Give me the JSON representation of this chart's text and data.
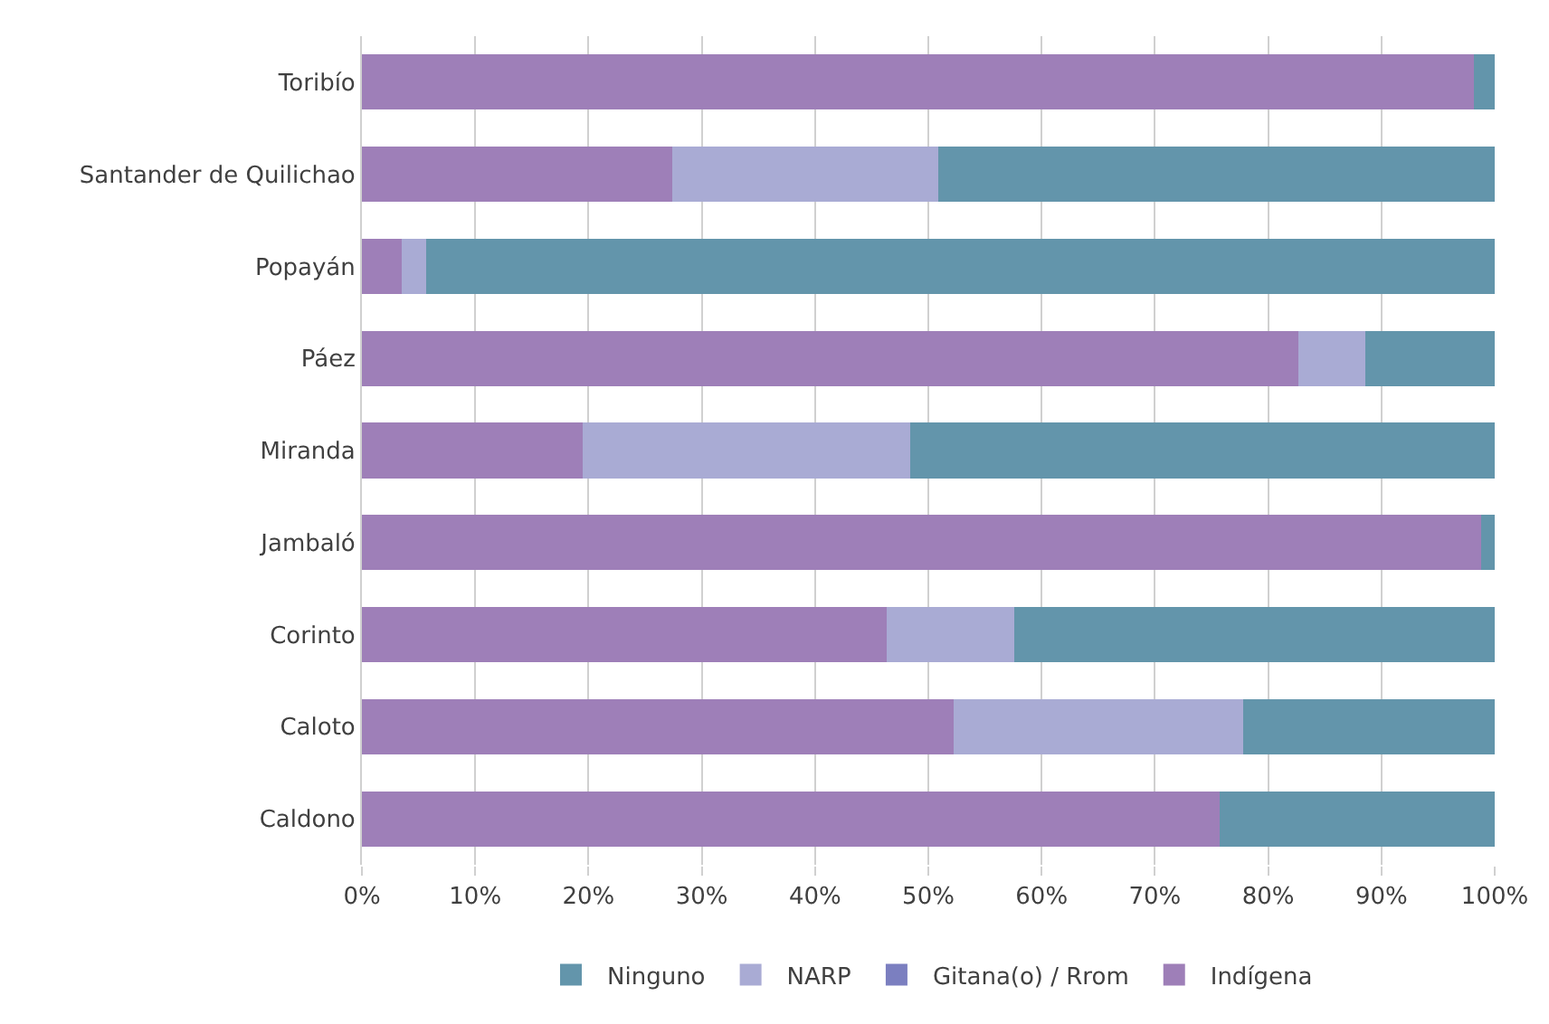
{
  "chart_data": {
    "type": "bar",
    "orientation": "horizontal",
    "stacked": true,
    "categories": [
      "Toribío",
      "Santander de Quilichao",
      "Popayán",
      "Páez",
      "Miranda",
      "Jambaló",
      "Corinto",
      "Caloto",
      "Caldono"
    ],
    "series": [
      {
        "name": "Indígena",
        "color": "#9e7fb8",
        "values": [
          98.2,
          27.4,
          3.5,
          82.7,
          19.5,
          98.8,
          46.3,
          52.2,
          75.7
        ]
      },
      {
        "name": "Gitana(o) / Rrom",
        "color": "#7b7fc0",
        "values": [
          0,
          0,
          0,
          0,
          0,
          0,
          0,
          0,
          0
        ]
      },
      {
        "name": "NARP",
        "color": "#a9abd4",
        "values": [
          0,
          23.5,
          2.2,
          5.9,
          28.9,
          0,
          11.3,
          25.6,
          0
        ]
      },
      {
        "name": "Ninguno",
        "color": "#6395ab",
        "values": [
          1.8,
          49.1,
          94.3,
          11.4,
          51.6,
          1.2,
          42.4,
          22.2,
          24.3
        ]
      }
    ],
    "xlim": [
      0,
      100
    ],
    "xticks": [
      {
        "value": 0,
        "label": "0%"
      },
      {
        "value": 10,
        "label": "10%"
      },
      {
        "value": 20,
        "label": "20%"
      },
      {
        "value": 30,
        "label": "30%"
      },
      {
        "value": 40,
        "label": "40%"
      },
      {
        "value": 50,
        "label": "50%"
      },
      {
        "value": 60,
        "label": "60%"
      },
      {
        "value": 70,
        "label": "70%"
      },
      {
        "value": 80,
        "label": "80%"
      },
      {
        "value": 90,
        "label": "90%"
      },
      {
        "value": 100,
        "label": "100%"
      }
    ],
    "grid": "x",
    "legend": "bottom"
  }
}
